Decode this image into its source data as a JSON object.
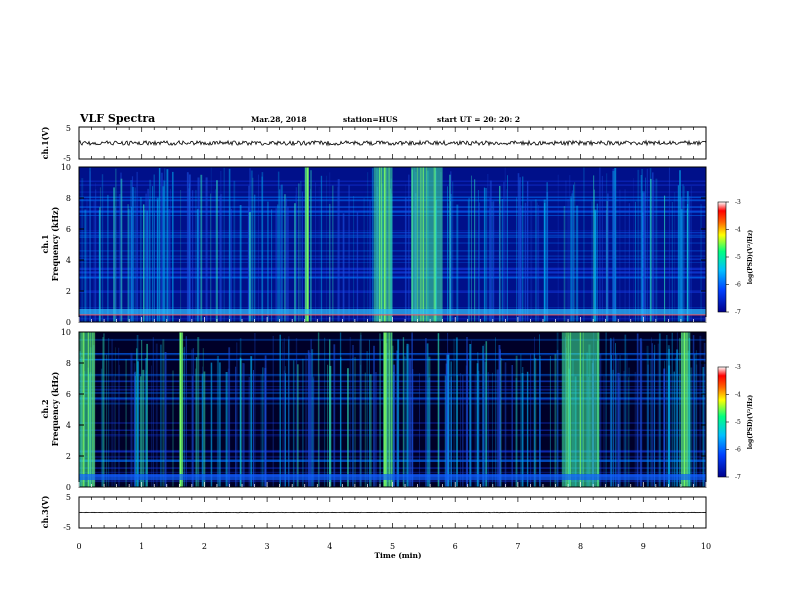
{
  "header": {
    "title": "VLF Spectra",
    "date": "Mar.28, 2018",
    "station": "station=HUS",
    "start": "start  UT =  20: 20: 2"
  },
  "colors": {
    "spectrogram_low": "#00007a",
    "spectrogram_mid": "#00c0ff",
    "spectrogram_high": "#40ff80",
    "colorbar": [
      "#00008c",
      "#0040ff",
      "#00c0ff",
      "#00ff80",
      "#ffff00",
      "#ff6000",
      "#ff0000",
      "#ffffff"
    ]
  },
  "chart_data": [
    {
      "type": "line",
      "panel": "ch1-waveform",
      "ylabel": "ch.1(V)",
      "ylim": [
        -5,
        5
      ],
      "y_ticks": [
        "5",
        "-5"
      ],
      "level": 0,
      "xlim": [
        0,
        10
      ]
    },
    {
      "type": "heatmap",
      "panel": "ch1-spectrogram",
      "ylabel_line1": "ch.1",
      "ylabel_line2": "Frequency (kHz)",
      "ylim": [
        0,
        10
      ],
      "y_ticks": [
        "0",
        "2",
        "4",
        "6",
        "8",
        "10"
      ],
      "xlim": [
        0,
        10
      ],
      "colorbar": {
        "label": "log(PSD)(V²/Hz)",
        "range": [
          -7,
          -3
        ],
        "ticks": [
          "-3",
          "-4",
          "-5",
          "-6",
          "-7"
        ]
      },
      "bright_bands_min": [
        [
          3.6,
          3.65
        ],
        [
          4.7,
          5.0
        ],
        [
          5.3,
          5.8
        ]
      ]
    },
    {
      "type": "heatmap",
      "panel": "ch2-spectrogram",
      "ylabel_line1": "ch.2",
      "ylabel_line2": "Frequency (kHz)",
      "ylim": [
        0,
        10
      ],
      "y_ticks": [
        "0",
        "2",
        "4",
        "6",
        "8",
        "10"
      ],
      "xlim": [
        0,
        10
      ],
      "colorbar": {
        "label": "log(PSD)(V²/Hz)",
        "range": [
          -7,
          -3
        ],
        "ticks": [
          "-3",
          "-4",
          "-5",
          "-6",
          "-7"
        ]
      },
      "bright_bands_min": [
        [
          0.0,
          0.25
        ],
        [
          1.6,
          1.65
        ],
        [
          4.85,
          5.0
        ],
        [
          7.7,
          8.3
        ],
        [
          9.6,
          9.75
        ]
      ]
    },
    {
      "type": "line",
      "panel": "ch3-waveform",
      "ylabel": "ch.3(V)",
      "ylim": [
        -5,
        5
      ],
      "y_ticks": [
        "5",
        "-5"
      ],
      "level": 0,
      "xlim": [
        0,
        10
      ],
      "xlabel": "Time  (min)",
      "x_ticks": [
        "0",
        "1",
        "2",
        "3",
        "4",
        "5",
        "6",
        "7",
        "8",
        "9",
        "10"
      ]
    }
  ]
}
